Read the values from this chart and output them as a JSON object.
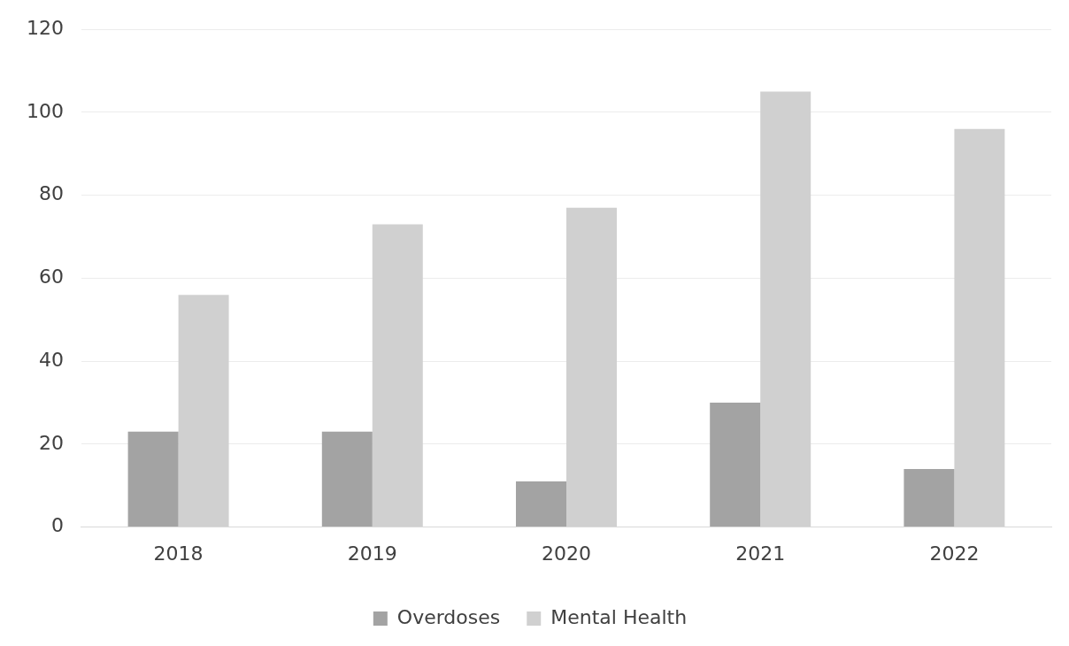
{
  "chart_data": {
    "type": "bar",
    "categories": [
      "2018",
      "2019",
      "2020",
      "2021",
      "2022"
    ],
    "series": [
      {
        "name": "Overdoses",
        "color": "#a3a3a3",
        "values": [
          23,
          23,
          11,
          30,
          14
        ]
      },
      {
        "name": "Mental Health",
        "color": "#d0d0d0",
        "values": [
          56,
          73,
          77,
          105,
          96
        ]
      }
    ],
    "ylim": [
      0,
      120
    ],
    "yticks": [
      0,
      20,
      40,
      60,
      80,
      100,
      120
    ],
    "grid": "y",
    "legend": "bottom"
  }
}
